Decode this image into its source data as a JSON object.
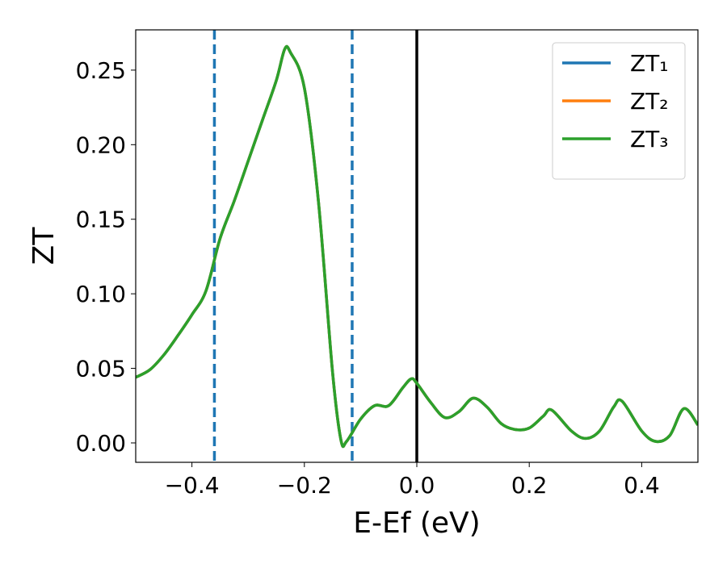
{
  "chart_data": {
    "type": "line",
    "xlabel": "E-Ef (eV)",
    "ylabel": "ZT",
    "x": [
      -0.5,
      -0.475,
      -0.45,
      -0.425,
      -0.4,
      -0.375,
      -0.35,
      -0.325,
      -0.3,
      -0.275,
      -0.25,
      -0.235,
      -0.225,
      -0.2,
      -0.175,
      -0.15,
      -0.135,
      -0.125,
      -0.1,
      -0.075,
      -0.05,
      -0.025,
      -0.01,
      0,
      0.025,
      0.05,
      0.075,
      0.1,
      0.125,
      0.15,
      0.175,
      0.2,
      0.225,
      0.24,
      0.275,
      0.3,
      0.325,
      0.35,
      0.365,
      0.4,
      0.425,
      0.45,
      0.475,
      0.5
    ],
    "series": [
      {
        "name": "ZT₁",
        "color": "#1f77b4",
        "values": [
          0.044,
          0.049,
          0.059,
          0.072,
          0.086,
          0.102,
          0.137,
          0.162,
          0.189,
          0.216,
          0.243,
          0.264,
          0.262,
          0.238,
          0.162,
          0.048,
          0.002,
          0.001,
          0.016,
          0.025,
          0.025,
          0.037,
          0.043,
          0.04,
          0.027,
          0.017,
          0.021,
          0.03,
          0.024,
          0.013,
          0.009,
          0.01,
          0.018,
          0.022,
          0.008,
          0.003,
          0.008,
          0.024,
          0.028,
          0.008,
          0.001,
          0.005,
          0.023,
          0.012
        ]
      },
      {
        "name": "ZT₂",
        "color": "#ff7f0e",
        "values": [
          0.044,
          0.049,
          0.059,
          0.072,
          0.086,
          0.102,
          0.137,
          0.162,
          0.189,
          0.216,
          0.243,
          0.264,
          0.262,
          0.238,
          0.162,
          0.048,
          0.002,
          0.001,
          0.016,
          0.025,
          0.025,
          0.037,
          0.043,
          0.04,
          0.027,
          0.017,
          0.021,
          0.03,
          0.024,
          0.013,
          0.009,
          0.01,
          0.018,
          0.022,
          0.008,
          0.003,
          0.008,
          0.024,
          0.028,
          0.008,
          0.001,
          0.005,
          0.023,
          0.012
        ]
      },
      {
        "name": "ZT₃",
        "color": "#2ca02c",
        "values": [
          0.044,
          0.049,
          0.059,
          0.072,
          0.086,
          0.102,
          0.137,
          0.162,
          0.189,
          0.216,
          0.243,
          0.264,
          0.262,
          0.238,
          0.162,
          0.048,
          0.002,
          0.001,
          0.016,
          0.025,
          0.025,
          0.037,
          0.043,
          0.04,
          0.027,
          0.017,
          0.021,
          0.03,
          0.024,
          0.013,
          0.009,
          0.01,
          0.018,
          0.022,
          0.008,
          0.003,
          0.008,
          0.024,
          0.028,
          0.008,
          0.001,
          0.005,
          0.023,
          0.012
        ]
      }
    ],
    "vlines": [
      {
        "x": -0.36,
        "color": "#1f77b4",
        "dashed": true
      },
      {
        "x": -0.115,
        "color": "#1f77b4",
        "dashed": true
      },
      {
        "x": 0,
        "color": "#000000",
        "dashed": false
      }
    ],
    "xlim": [
      -0.5,
      0.5
    ],
    "ylim": [
      -0.013,
      0.277
    ],
    "xticks": [
      {
        "value": -0.4,
        "label": "−0.4"
      },
      {
        "value": -0.2,
        "label": "−0.2"
      },
      {
        "value": 0,
        "label": "0.0"
      },
      0.2,
      0.4
    ],
    "yticks": [
      {
        "value": 0,
        "label": "0.00"
      },
      0.05,
      {
        "value": 0.1,
        "label": "0.10"
      },
      0.15,
      {
        "value": 0.2,
        "label": "0.20"
      },
      0.25
    ],
    "legend": "upper right",
    "grid": false
  }
}
